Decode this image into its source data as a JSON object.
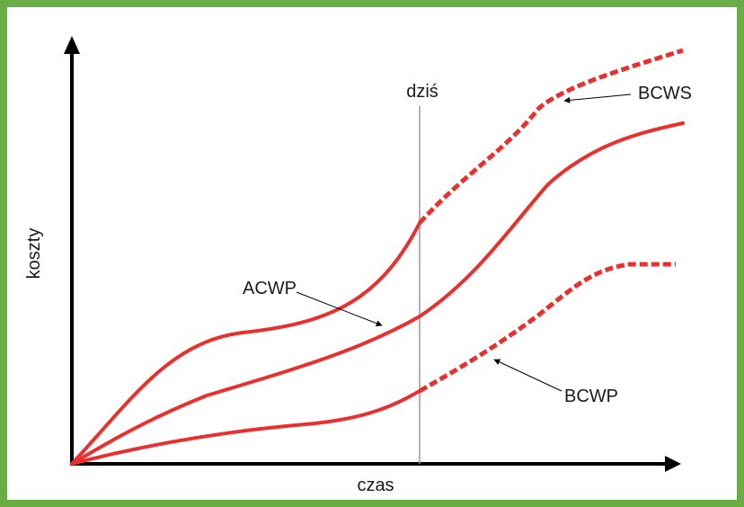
{
  "diagram": {
    "x_axis_label": "czas",
    "y_axis_label": "koszty",
    "today_label": "dziś",
    "curves": [
      {
        "label": "BCWS",
        "color": "#e8312f",
        "line_style": "solid-then-dashed"
      },
      {
        "label": "ACWP",
        "color": "#e8312f",
        "line_style": "solid"
      },
      {
        "label": "BCWP",
        "color": "#e8312f",
        "line_style": "solid-then-dashed"
      }
    ],
    "colors": {
      "curve": "#e8312f",
      "axis": "#000000",
      "today_line": "#999999",
      "frame": "#6aad45"
    }
  }
}
